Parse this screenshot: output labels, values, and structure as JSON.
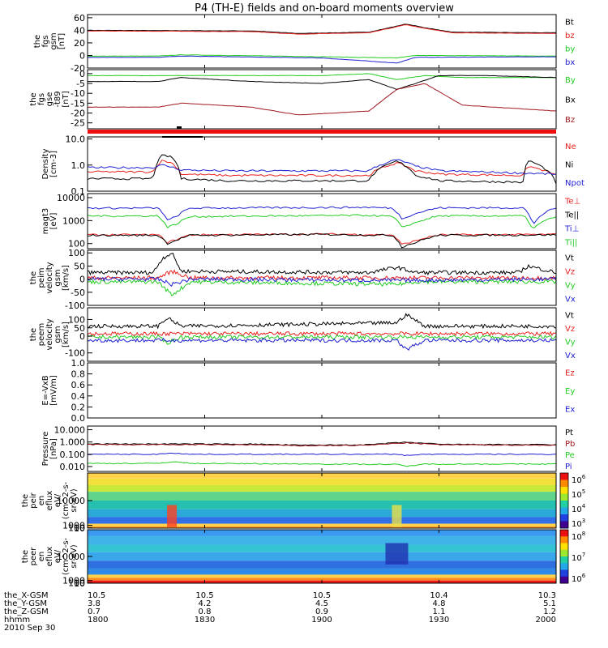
{
  "title": "P4 (TH-E) fields and on-board moments overview",
  "colors": {
    "black": "#000000",
    "red": "#e8211e",
    "darkred": "#a0161e",
    "green": "#22cc22",
    "blue": "#1f1fd0",
    "bright": "#ee1010"
  },
  "chart_data": [
    {
      "type": "line",
      "ylabel": [
        "the",
        "fgs",
        "gsm",
        "[nT]"
      ],
      "ylim": [
        -20,
        65
      ],
      "ticks": [
        {
          "v": 60,
          "t": "60"
        },
        {
          "v": 40,
          "t": "40"
        },
        {
          "v": 20,
          "t": "20"
        },
        {
          "v": 0,
          "t": "0"
        },
        {
          "v": -20,
          "t": "-20"
        }
      ],
      "series": [
        {
          "name": "Bt",
          "color": "#000000",
          "x": [
            0,
            0.35,
            0.45,
            0.6,
            0.65,
            0.68,
            0.72,
            0.78,
            1
          ],
          "y": [
            40,
            39,
            35,
            37,
            45,
            50,
            44,
            37,
            36
          ]
        },
        {
          "name": "bz",
          "color": "#e8211e",
          "x": [
            0,
            0.35,
            0.45,
            0.6,
            0.65,
            0.68,
            0.72,
            0.78,
            1
          ],
          "y": [
            39,
            38,
            34,
            36,
            44,
            49,
            43,
            36,
            35
          ]
        },
        {
          "name": "by",
          "color": "#22cc22",
          "x": [
            0,
            0.15,
            0.2,
            0.5,
            0.66,
            0.7,
            1
          ],
          "y": [
            -1,
            -1,
            1,
            -2,
            -4,
            0,
            -1
          ]
        },
        {
          "name": "bx",
          "color": "#1f1fd0",
          "x": [
            0,
            0.15,
            0.2,
            0.5,
            0.66,
            0.7,
            1
          ],
          "y": [
            -3,
            -3,
            -1,
            -4,
            -12,
            -3,
            -2
          ]
        }
      ]
    },
    {
      "type": "line",
      "ylabel": [
        "the",
        "fgs",
        "gse",
        "-t89",
        "[nT]"
      ],
      "ylim": [
        -28,
        2
      ],
      "ticks": [
        {
          "v": 0,
          "t": "0"
        },
        {
          "v": -5,
          "t": "-5"
        },
        {
          "v": -10,
          "t": "-10"
        },
        {
          "v": -15,
          "t": "-15"
        },
        {
          "v": -20,
          "t": "-20"
        },
        {
          "v": -25,
          "t": "-25"
        }
      ],
      "series": [
        {
          "name": "By",
          "color": "#22cc22",
          "x": [
            0,
            0.15,
            0.2,
            0.5,
            0.6,
            0.66,
            0.72,
            0.8,
            1
          ],
          "y": [
            -1,
            -1,
            -1,
            -1,
            0,
            -3,
            -1,
            -2,
            -2
          ]
        },
        {
          "name": "Bx",
          "color": "#000000",
          "x": [
            0,
            0.15,
            0.2,
            0.35,
            0.5,
            0.6,
            0.66,
            0.7,
            0.75,
            0.85,
            1
          ],
          "y": [
            -4,
            -4,
            -2,
            -4,
            -5,
            -3,
            -8,
            -5,
            -1,
            -1,
            -2
          ]
        },
        {
          "name": "Bz",
          "color": "#a0161e",
          "x": [
            0,
            0.15,
            0.2,
            0.35,
            0.45,
            0.6,
            0.66,
            0.72,
            0.8,
            1
          ],
          "y": [
            -17,
            -17,
            -15,
            -17,
            -21,
            -19,
            -8,
            -5,
            -16,
            -19
          ]
        }
      ]
    },
    {
      "type": "line",
      "log": true,
      "ylabel": [
        "Density",
        "[cm-3]"
      ],
      "ylim": [
        0.1,
        12
      ],
      "ticks": [
        {
          "v": 10,
          "t": "10.0"
        },
        {
          "v": 1,
          "t": "1.0"
        },
        {
          "v": 0.1,
          "t": "0.1"
        }
      ],
      "series": [
        {
          "name": "Ne",
          "color": "#e8211e",
          "x": [
            0,
            0.14,
            0.16,
            0.18,
            0.2,
            0.3,
            0.6,
            0.66,
            0.7,
            0.75,
            0.93,
            0.94,
            1
          ],
          "y": [
            0.55,
            0.55,
            1.5,
            1.2,
            0.45,
            0.4,
            0.4,
            1.2,
            0.6,
            0.45,
            0.4,
            0.9,
            0.4
          ]
        },
        {
          "name": "Ni",
          "color": "#000000",
          "x": [
            0,
            0.14,
            0.16,
            0.18,
            0.2,
            0.3,
            0.6,
            0.66,
            0.7,
            0.75,
            0.93,
            0.94,
            1
          ],
          "y": [
            0.3,
            0.3,
            2.4,
            2.0,
            0.3,
            0.25,
            0.25,
            1.4,
            0.4,
            0.25,
            0.22,
            1.5,
            0.2
          ]
        },
        {
          "name": "Npot",
          "color": "#1f1fd0",
          "x": [
            0,
            0.14,
            0.16,
            0.2,
            0.3,
            0.6,
            0.66,
            0.7,
            0.75,
            1
          ],
          "y": [
            0.8,
            0.8,
            1.0,
            0.65,
            0.6,
            0.6,
            1.6,
            0.9,
            0.6,
            0.45
          ]
        }
      ]
    },
    {
      "type": "line",
      "log": true,
      "ylabel": [
        "magt3",
        "[eV]"
      ],
      "ylim": [
        60,
        15000
      ],
      "ticks": [
        {
          "v": 10000,
          "t": "10000"
        },
        {
          "v": 1000,
          "t": "1000"
        },
        {
          "v": 100,
          "t": "100"
        }
      ],
      "series": [
        {
          "name": "Te⊥",
          "color": "#e8211e",
          "x": [
            0,
            0.15,
            0.17,
            0.19,
            0.22,
            0.5,
            0.65,
            0.67,
            0.7,
            0.75,
            1
          ],
          "y": [
            240,
            240,
            110,
            150,
            240,
            260,
            240,
            90,
            130,
            240,
            250
          ]
        },
        {
          "name": "Te||",
          "color": "#000000",
          "x": [
            0,
            0.15,
            0.17,
            0.19,
            0.22,
            0.5,
            0.65,
            0.67,
            0.7,
            0.75,
            1
          ],
          "y": [
            230,
            230,
            100,
            140,
            230,
            250,
            230,
            70,
            110,
            230,
            240
          ]
        },
        {
          "name": "Ti⊥",
          "color": "#1f1fd0",
          "x": [
            0,
            0.15,
            0.17,
            0.19,
            0.22,
            0.6,
            0.65,
            0.67,
            0.7,
            0.75,
            0.93,
            0.95,
            1
          ],
          "y": [
            3500,
            3500,
            1000,
            1500,
            3500,
            3800,
            3500,
            1200,
            2000,
            3600,
            3600,
            600,
            3600
          ]
        },
        {
          "name": "Ti||",
          "color": "#22cc22",
          "x": [
            0,
            0.15,
            0.17,
            0.19,
            0.22,
            0.6,
            0.65,
            0.67,
            0.7,
            0.75,
            0.93,
            0.95,
            1
          ],
          "y": [
            1600,
            1600,
            500,
            700,
            1500,
            1700,
            1500,
            500,
            800,
            1600,
            1600,
            400,
            1500
          ]
        }
      ]
    },
    {
      "type": "line",
      "noisy": true,
      "ylabel": [
        "the",
        "peim",
        "velocity",
        "gsm",
        "[km/s]"
      ],
      "ylim": [
        -100,
        110
      ],
      "ticks": [
        {
          "v": 100,
          "t": "100"
        },
        {
          "v": 50,
          "t": "50"
        },
        {
          "v": 0,
          "t": "0"
        },
        {
          "v": -50,
          "t": "-50"
        },
        {
          "v": -100,
          "t": "-100"
        }
      ],
      "series": [
        {
          "name": "Vt",
          "color": "#000000",
          "x": [
            0,
            0.14,
            0.16,
            0.18,
            0.2,
            0.6,
            0.66,
            0.7,
            0.92,
            0.94,
            1
          ],
          "y": [
            25,
            25,
            80,
            100,
            30,
            25,
            45,
            25,
            25,
            50,
            25
          ]
        },
        {
          "name": "Vz",
          "color": "#e8211e",
          "x": [
            0,
            0.15,
            0.18,
            0.22,
            1
          ],
          "y": [
            5,
            5,
            30,
            5,
            5
          ]
        },
        {
          "name": "Vy",
          "color": "#22cc22",
          "x": [
            0,
            0.15,
            0.18,
            0.22,
            0.66,
            0.7,
            1
          ],
          "y": [
            -10,
            -10,
            -60,
            -10,
            -20,
            -10,
            -10
          ]
        },
        {
          "name": "Vx",
          "color": "#1f1fd0",
          "x": [
            0,
            0.15,
            0.18,
            0.22,
            0.66,
            1
          ],
          "y": [
            0,
            0,
            -20,
            0,
            -5,
            0
          ]
        }
      ]
    },
    {
      "type": "line",
      "noisy": true,
      "ylabel": [
        "the",
        "peem",
        "velocity",
        "gsm",
        "[km/s]"
      ],
      "ylim": [
        -150,
        170
      ],
      "ticks": [
        {
          "v": 100,
          "t": "100"
        },
        {
          "v": 50,
          "t": "50"
        },
        {
          "v": 0,
          "t": "0"
        },
        {
          "v": -100,
          "t": "-100"
        }
      ],
      "series": [
        {
          "name": "Vt",
          "color": "#000000",
          "x": [
            0,
            0.15,
            0.17,
            0.2,
            0.66,
            0.68,
            0.72,
            1
          ],
          "y": [
            60,
            60,
            110,
            60,
            80,
            130,
            60,
            60
          ]
        },
        {
          "name": "Vz",
          "color": "#e8211e",
          "x": [
            0,
            1
          ],
          "y": [
            15,
            15
          ]
        },
        {
          "name": "Vy",
          "color": "#22cc22",
          "x": [
            0,
            0.15,
            0.17,
            0.2,
            1
          ],
          "y": [
            -5,
            -5,
            -40,
            -5,
            -5
          ]
        },
        {
          "name": "Vx",
          "color": "#1f1fd0",
          "x": [
            0,
            0.66,
            0.68,
            0.72,
            1
          ],
          "y": [
            -25,
            -25,
            -80,
            -25,
            -25
          ]
        }
      ]
    },
    {
      "type": "line",
      "ylabel": [
        "E=-VxB",
        "[mV/m]"
      ],
      "ylim": [
        0,
        1
      ],
      "ticks": [
        {
          "v": 1.0,
          "t": "1.0"
        },
        {
          "v": 0.8,
          "t": "0.8"
        },
        {
          "v": 0.6,
          "t": "0.6"
        },
        {
          "v": 0.4,
          "t": "0.4"
        },
        {
          "v": 0.2,
          "t": "0.2"
        },
        {
          "v": 0.0,
          "t": "0.0"
        }
      ],
      "series": [
        {
          "name": "Ez",
          "color": "#e8211e",
          "x": [],
          "y": []
        },
        {
          "name": "Ey",
          "color": "#22cc22",
          "x": [],
          "y": []
        },
        {
          "name": "Ex",
          "color": "#1f1fd0",
          "x": [],
          "y": []
        }
      ]
    },
    {
      "type": "line",
      "log": true,
      "ylabel": [
        "Pressure",
        "[nPa]"
      ],
      "ylim": [
        0.004,
        20
      ],
      "ticks": [
        {
          "v": 10,
          "t": "10.000"
        },
        {
          "v": 1,
          "t": "1.000"
        },
        {
          "v": 0.1,
          "t": "0.100"
        },
        {
          "v": 0.01,
          "t": "0.010"
        }
      ],
      "series": [
        {
          "name": "Pt",
          "color": "#000000",
          "x": [
            0,
            0.35,
            0.45,
            0.6,
            0.68,
            0.75,
            1
          ],
          "y": [
            0.7,
            0.68,
            0.55,
            0.6,
            0.95,
            0.65,
            0.6
          ]
        },
        {
          "name": "Pb",
          "color": "#a0161e",
          "x": [
            0,
            0.35,
            0.45,
            0.6,
            0.68,
            0.75,
            1
          ],
          "y": [
            0.62,
            0.6,
            0.5,
            0.55,
            0.85,
            0.6,
            0.55
          ]
        },
        {
          "name": "Pe",
          "color": "#22cc22",
          "x": [
            0,
            0.15,
            0.18,
            0.22,
            0.66,
            0.68,
            0.72,
            1
          ],
          "y": [
            0.018,
            0.018,
            0.025,
            0.018,
            0.015,
            0.01,
            0.016,
            0.016
          ]
        },
        {
          "name": "Pi",
          "color": "#1f1fd0",
          "x": [
            0,
            0.15,
            0.18,
            0.22,
            0.66,
            0.68,
            0.72,
            1
          ],
          "y": [
            0.1,
            0.1,
            0.13,
            0.1,
            0.1,
            0.08,
            0.1,
            0.1
          ]
        }
      ]
    },
    {
      "type": "heatmap",
      "ylabel": [
        "the",
        "peir",
        "en",
        "eflux",
        "eV/",
        "(cm^2-s-",
        "sr-eV)"
      ],
      "ylim": [
        6,
        20000
      ],
      "ticks": [
        {
          "v": 10000,
          "t": "10000"
        },
        {
          "v": 1000,
          "t": "1000"
        },
        {
          "v": 100,
          "t": "100"
        },
        {
          "v": 10,
          "t": "10"
        }
      ],
      "colorbar": {
        "labels": [
          "10^6",
          "10^5",
          "10^4",
          "10^3"
        ],
        "exps": [
          "6",
          "5",
          "4",
          "3"
        ],
        "range": [
          3,
          6.5
        ]
      }
    },
    {
      "type": "heatmap",
      "ylabel": [
        "the",
        "peer",
        "en",
        "eflux",
        "eV/",
        "(cm^2-s-",
        "sr-eV)"
      ],
      "ylim": [
        6,
        20000
      ],
      "ticks": [
        {
          "v": 10000,
          "t": "10000"
        },
        {
          "v": 1000,
          "t": "1000"
        },
        {
          "v": 100,
          "t": "100"
        },
        {
          "v": 10,
          "t": "10"
        }
      ],
      "colorbar": {
        "labels": [
          "10^8",
          "10^7",
          "10^6"
        ],
        "exps": [
          "8",
          "7",
          "6"
        ],
        "range": [
          5.5,
          8.2
        ]
      }
    }
  ],
  "legend": [
    [
      "Bt",
      "bz",
      "by",
      "bx"
    ],
    [
      "By",
      "Bx",
      "Bz"
    ],
    [
      "Ne",
      "Ni",
      "Npot"
    ],
    [
      "Te⊥",
      "Te||",
      "Ti⊥",
      "Ti||"
    ],
    [
      "Vt",
      "Vz",
      "Vy",
      "Vx"
    ],
    [
      "Vt",
      "Vz",
      "Vy",
      "Vx"
    ],
    [
      "Ez",
      "Ey",
      "Ex"
    ],
    [
      "Pt",
      "Pb",
      "Pe",
      "Pi"
    ]
  ],
  "x_axis": {
    "positions": [
      0,
      0.25,
      0.5,
      0.75,
      1
    ],
    "row_labels": [
      "the_X-GSM",
      "the_Y-GSM",
      "the_Z-GSM",
      "hhmm"
    ],
    "rows": [
      [
        "10.5",
        "10.5",
        "10.5",
        "10.4",
        "10.3"
      ],
      [
        "3.8",
        "4.2",
        "4.5",
        "4.8",
        "5.1"
      ],
      [
        "0.7",
        "0.8",
        "0.9",
        "1.1",
        "1.2"
      ],
      [
        "1800",
        "1830",
        "1900",
        "1930",
        "2000"
      ]
    ],
    "date": "2010 Sep 30"
  }
}
